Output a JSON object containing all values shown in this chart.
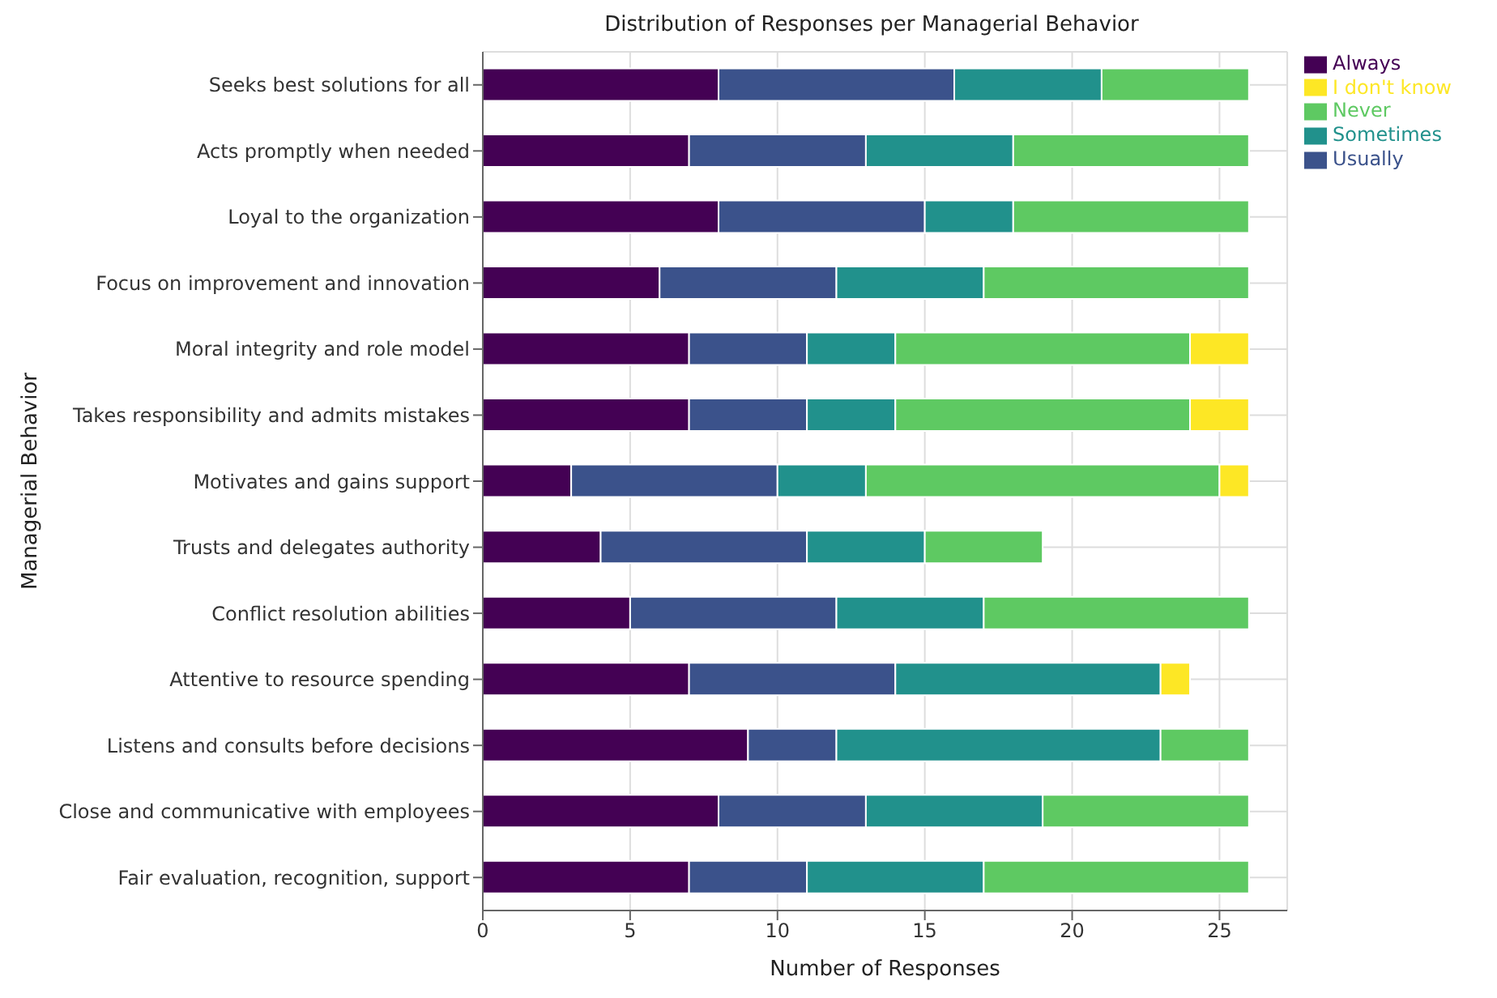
{
  "chart_data": {
    "type": "bar",
    "orientation": "horizontal",
    "stacked": true,
    "title": "Distribution of Responses per Managerial Behavior",
    "xlabel": "Number of Responses",
    "ylabel": "Managerial Behavior",
    "categories": [
      "Seeks best solutions for all",
      "Acts promptly when needed",
      "Loyal to the organization",
      "Focus on improvement and innovation",
      "Moral integrity and role model",
      "Takes responsibility and admits mistakes",
      "Motivates and gains support",
      "Trusts and delegates authority",
      "Conflict resolution abilities",
      "Attentive to resource spending",
      "Listens and consults before decisions",
      "Close and communicative with employees",
      "Fair evaluation, recognition, support"
    ],
    "series": [
      {
        "name": "Always",
        "color": "#440154",
        "values": [
          8,
          7,
          8,
          6,
          7,
          7,
          3,
          4,
          5,
          7,
          9,
          8,
          7
        ]
      },
      {
        "name": "Usually",
        "color": "#3b528b",
        "values": [
          8,
          6,
          7,
          6,
          4,
          4,
          7,
          7,
          7,
          7,
          3,
          5,
          4
        ]
      },
      {
        "name": "Sometimes",
        "color": "#21918c",
        "values": [
          5,
          5,
          3,
          5,
          3,
          3,
          3,
          4,
          5,
          9,
          11,
          6,
          6
        ]
      },
      {
        "name": "Never",
        "color": "#5ec962",
        "values": [
          5,
          8,
          8,
          9,
          10,
          10,
          12,
          4,
          9,
          0,
          3,
          7,
          9
        ]
      },
      {
        "name": "I don't know",
        "color": "#fde725",
        "values": [
          0,
          0,
          0,
          0,
          2,
          2,
          1,
          0,
          0,
          1,
          0,
          0,
          0
        ]
      }
    ],
    "xlim": [
      0,
      27.3
    ],
    "xticks": [
      0,
      5,
      10,
      15,
      20,
      25
    ],
    "grid": true,
    "legend": "top right"
  }
}
